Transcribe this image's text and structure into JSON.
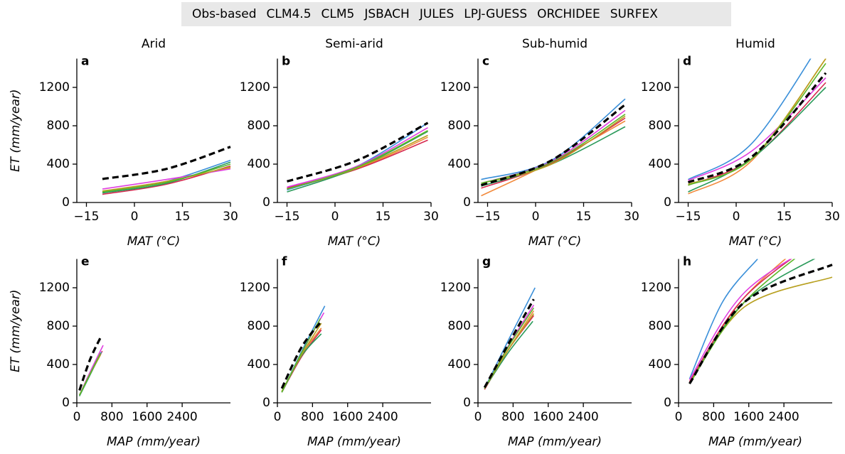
{
  "legend": [
    {
      "name": "Obs-based",
      "color": "#000000",
      "dashed": true
    },
    {
      "name": "CLM4.5",
      "color": "#f28a3c",
      "dashed": false
    },
    {
      "name": "CLM5",
      "color": "#d6294f",
      "dashed": false
    },
    {
      "name": "JSBACH",
      "color": "#3a8fd9",
      "dashed": false
    },
    {
      "name": "JULES",
      "color": "#e03ee0",
      "dashed": false
    },
    {
      "name": "LPJ-GUESS",
      "color": "#2a9a5a",
      "dashed": false
    },
    {
      "name": "ORCHIDEE",
      "color": "#b8a020",
      "dashed": false
    },
    {
      "name": "SURFEX",
      "color": "#5cb82a",
      "dashed": false
    }
  ],
  "chart_data": [
    {
      "type": "line",
      "panel_label": "a",
      "title": "Arid",
      "ylabel": "ET (mm/year)",
      "xlabel": "MAT (°C)",
      "xlim": [
        -18,
        30
      ],
      "ylim": [
        0,
        1500
      ],
      "xticks": [
        {
          "value": -15,
          "label": "−15"
        },
        0,
        15,
        30
      ],
      "yticks": [
        0,
        400,
        800,
        1200
      ],
      "series": [
        {
          "x": [
            -10,
            10,
            30
          ],
          "values": [
            245,
            350,
            580
          ]
        },
        {
          "x": [
            -10,
            10,
            30
          ],
          "values": [
            110,
            220,
            360
          ]
        },
        {
          "x": [
            -10,
            10,
            30
          ],
          "values": [
            85,
            190,
            380
          ]
        },
        {
          "x": [
            -10,
            10,
            30
          ],
          "values": [
            100,
            220,
            440
          ]
        },
        {
          "x": [
            -10,
            10,
            30
          ],
          "values": [
            140,
            240,
            350
          ]
        },
        {
          "x": [
            -10,
            10,
            30
          ],
          "values": [
            100,
            200,
            420
          ]
        },
        {
          "x": [
            -10,
            10,
            30
          ],
          "values": [
            120,
            220,
            370
          ]
        },
        {
          "x": [
            -10,
            10,
            30
          ],
          "values": [
            110,
            210,
            400
          ]
        }
      ]
    },
    {
      "type": "line",
      "panel_label": "b",
      "title": "Semi-arid",
      "xlabel": "MAT (°C)",
      "xlim": [
        -18,
        30
      ],
      "ylim": [
        0,
        1500
      ],
      "xticks": [
        {
          "value": -15,
          "label": "−15"
        },
        0,
        15,
        30
      ],
      "yticks": [
        0,
        400,
        800,
        1200
      ],
      "series": [
        {
          "x": [
            -15,
            7,
            29
          ],
          "values": [
            220,
            440,
            830
          ]
        },
        {
          "x": [
            -15,
            7,
            29
          ],
          "values": [
            140,
            350,
            680
          ]
        },
        {
          "x": [
            -15,
            7,
            29
          ],
          "values": [
            150,
            350,
            650
          ]
        },
        {
          "x": [
            -15,
            7,
            29
          ],
          "values": [
            130,
            380,
            830
          ]
        },
        {
          "x": [
            -15,
            7,
            29
          ],
          "values": [
            160,
            380,
            780
          ]
        },
        {
          "x": [
            -15,
            7,
            29
          ],
          "values": [
            110,
            360,
            740
          ]
        },
        {
          "x": [
            -15,
            7,
            29
          ],
          "values": [
            140,
            360,
            700
          ]
        },
        {
          "x": [
            -15,
            7,
            29
          ],
          "values": [
            140,
            370,
            750
          ]
        }
      ]
    },
    {
      "type": "line",
      "panel_label": "c",
      "title": "Sub-humid",
      "xlabel": "MAT (°C)",
      "xlim": [
        -18,
        30
      ],
      "ylim": [
        0,
        1500
      ],
      "xticks": [
        {
          "value": -15,
          "label": "−15"
        },
        0,
        15,
        30
      ],
      "yticks": [
        0,
        400,
        800,
        1200
      ],
      "series": [
        {
          "x": [
            -17,
            5,
            28
          ],
          "values": [
            180,
            440,
            1020
          ]
        },
        {
          "x": [
            -17,
            5,
            28
          ],
          "values": [
            70,
            420,
            850
          ]
        },
        {
          "x": [
            -17,
            5,
            28
          ],
          "values": [
            150,
            410,
            880
          ]
        },
        {
          "x": [
            -17,
            5,
            28
          ],
          "values": [
            240,
            440,
            1080
          ]
        },
        {
          "x": [
            -17,
            5,
            28
          ],
          "values": [
            200,
            430,
            960
          ]
        },
        {
          "x": [
            -17,
            5,
            28
          ],
          "values": [
            170,
            400,
            790
          ]
        },
        {
          "x": [
            -17,
            5,
            28
          ],
          "values": [
            200,
            400,
            900
          ]
        },
        {
          "x": [
            -17,
            5,
            28
          ],
          "values": [
            200,
            420,
            920
          ]
        }
      ]
    },
    {
      "type": "line",
      "panel_label": "d",
      "title": "Humid",
      "xlabel": "MAT (°C)",
      "xlim": [
        -18,
        30
      ],
      "ylim": [
        0,
        1500
      ],
      "xticks": [
        {
          "value": -15,
          "label": "−15"
        },
        0,
        15,
        30
      ],
      "yticks": [
        0,
        400,
        800,
        1200
      ],
      "series": [
        {
          "x": [
            -15,
            5,
            28
          ],
          "values": [
            210,
            480,
            1350
          ]
        },
        {
          "x": [
            -15,
            5,
            28
          ],
          "values": [
            90,
            440,
            1500
          ]
        },
        {
          "x": [
            -15,
            5,
            28
          ],
          "values": [
            180,
            460,
            1250
          ]
        },
        {
          "x": [
            -15,
            5,
            28
          ],
          "values": [
            240,
            620,
            1750
          ]
        },
        {
          "x": [
            -15,
            5,
            28
          ],
          "values": [
            230,
            540,
            1300
          ]
        },
        {
          "x": [
            -15,
            5,
            28
          ],
          "values": [
            110,
            460,
            1200
          ]
        },
        {
          "x": [
            -15,
            5,
            28
          ],
          "values": [
            190,
            460,
            1500
          ]
        },
        {
          "x": [
            -15,
            5,
            28
          ],
          "values": [
            180,
            460,
            1450
          ]
        }
      ]
    },
    {
      "type": "line",
      "panel_label": "e",
      "ylabel": "ET (mm/year)",
      "xlabel": "MAP (mm/year)",
      "xlim": [
        0,
        3500
      ],
      "ylim": [
        0,
        1500
      ],
      "xticks": [
        0,
        800,
        1600,
        2400
      ],
      "yticks": [
        0,
        400,
        800,
        1200
      ],
      "series": [
        {
          "x": [
            60,
            300,
            550
          ],
          "values": [
            130,
            450,
            690
          ]
        },
        {
          "x": [
            60,
            300,
            550
          ],
          "values": [
            80,
            300,
            510
          ]
        },
        {
          "x": [
            60,
            300,
            580
          ],
          "values": [
            80,
            300,
            540
          ]
        },
        {
          "x": [
            60,
            300,
            560
          ],
          "values": [
            80,
            310,
            530
          ]
        },
        {
          "x": [
            60,
            300,
            600
          ],
          "values": [
            80,
            320,
            600
          ]
        },
        {
          "x": [
            60,
            300,
            520
          ],
          "values": [
            70,
            290,
            490
          ]
        },
        {
          "x": [
            60,
            300,
            540
          ],
          "values": [
            80,
            300,
            500
          ]
        },
        {
          "x": [
            60,
            300,
            540
          ],
          "values": [
            80,
            300,
            520
          ]
        }
      ]
    },
    {
      "type": "line",
      "panel_label": "f",
      "xlabel": "MAP (mm/year)",
      "xlim": [
        0,
        3500
      ],
      "ylim": [
        0,
        1500
      ],
      "xticks": [
        0,
        800,
        1600,
        2400
      ],
      "yticks": [
        0,
        400,
        800,
        1200
      ],
      "series": [
        {
          "x": [
            100,
            550,
            1000
          ],
          "values": [
            150,
            580,
            850
          ]
        },
        {
          "x": [
            100,
            550,
            1000
          ],
          "values": [
            110,
            500,
            780
          ]
        },
        {
          "x": [
            100,
            550,
            1000
          ],
          "values": [
            110,
            480,
            760
          ]
        },
        {
          "x": [
            100,
            600,
            1080
          ],
          "values": [
            110,
            580,
            1010
          ]
        },
        {
          "x": [
            100,
            600,
            1060
          ],
          "values": [
            110,
            560,
            940
          ]
        },
        {
          "x": [
            100,
            550,
            1000
          ],
          "values": [
            110,
            490,
            720
          ]
        },
        {
          "x": [
            100,
            550,
            1000
          ],
          "values": [
            120,
            500,
            830
          ]
        },
        {
          "x": [
            100,
            550,
            980
          ],
          "values": [
            110,
            520,
            880
          ]
        }
      ]
    },
    {
      "type": "line",
      "panel_label": "g",
      "xlabel": "MAP (mm/year)",
      "xlim": [
        0,
        3500
      ],
      "ylim": [
        0,
        1500
      ],
      "xticks": [
        0,
        800,
        1600,
        2400
      ],
      "yticks": [
        0,
        400,
        800,
        1200
      ],
      "series": [
        {
          "x": [
            150,
            700,
            1270
          ],
          "values": [
            160,
            620,
            1080
          ]
        },
        {
          "x": [
            150,
            700,
            1270
          ],
          "values": [
            140,
            560,
            960
          ]
        },
        {
          "x": [
            150,
            700,
            1270
          ],
          "values": [
            140,
            560,
            910
          ]
        },
        {
          "x": [
            150,
            700,
            1300
          ],
          "values": [
            150,
            660,
            1200
          ]
        },
        {
          "x": [
            150,
            700,
            1270
          ],
          "values": [
            150,
            600,
            1020
          ]
        },
        {
          "x": [
            150,
            700,
            1250
          ],
          "values": [
            150,
            530,
            850
          ]
        },
        {
          "x": [
            150,
            700,
            1270
          ],
          "values": [
            150,
            560,
            930
          ]
        },
        {
          "x": [
            150,
            700,
            1270
          ],
          "values": [
            150,
            590,
            990
          ]
        }
      ]
    },
    {
      "type": "line",
      "panel_label": "h",
      "xlabel": "MAP (mm/year)",
      "xlim": [
        0,
        3500
      ],
      "ylim": [
        0,
        1500
      ],
      "xticks": [
        0,
        800,
        1600,
        2400
      ],
      "yticks": [
        0,
        400,
        800,
        1200
      ],
      "series": [
        {
          "x": [
            250,
            1500,
            3500
          ],
          "values": [
            200,
            1050,
            1440
          ]
        },
        {
          "x": [
            250,
            1500,
            3500
          ],
          "values": [
            210,
            1100,
            1900
          ]
        },
        {
          "x": [
            250,
            1500,
            3500
          ],
          "values": [
            220,
            1100,
            1800
          ]
        },
        {
          "x": [
            250,
            1000,
            1800
          ],
          "values": [
            250,
            1050,
            1500
          ]
        },
        {
          "x": [
            250,
            1500,
            3500
          ],
          "values": [
            240,
            1150,
            1750
          ]
        },
        {
          "x": [
            250,
            1500,
            3500
          ],
          "values": [
            200,
            1050,
            1600
          ]
        },
        {
          "x": [
            250,
            1500,
            3500
          ],
          "values": [
            200,
            1000,
            1310
          ]
        },
        {
          "x": [
            250,
            1500,
            3500
          ],
          "values": [
            200,
            1050,
            1800
          ]
        }
      ]
    }
  ]
}
